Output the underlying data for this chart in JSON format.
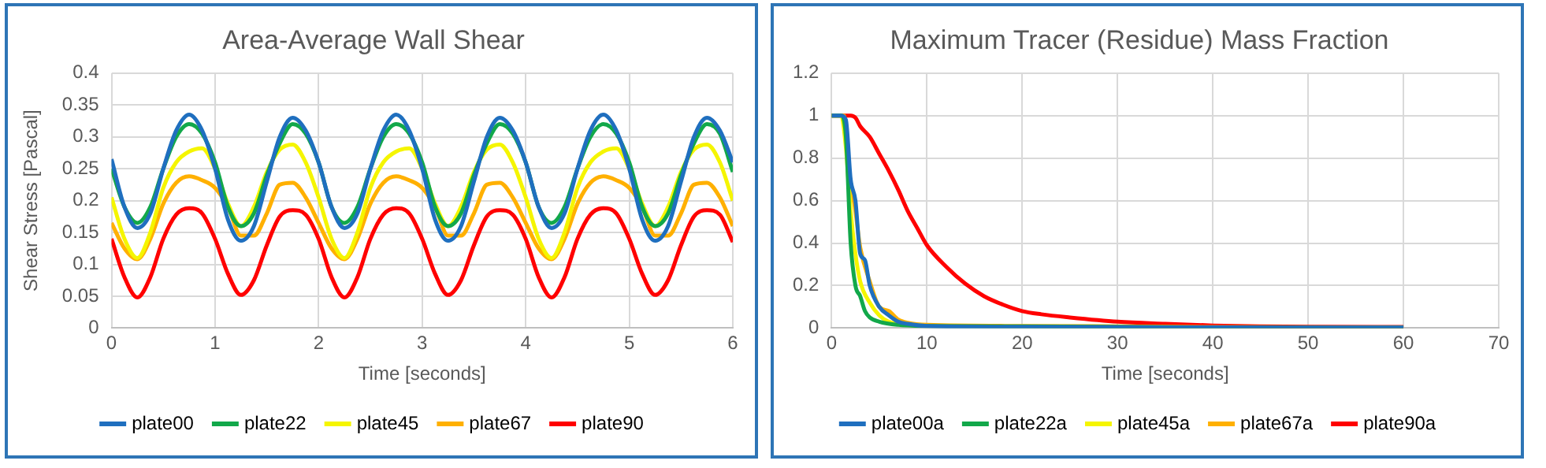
{
  "chart_data": [
    {
      "type": "line",
      "title": "Area-Average Wall Shear",
      "xlabel": "Time [seconds]",
      "ylabel": "Shear Stress [Pascal]",
      "xlim": [
        0,
        6
      ],
      "xticks": [
        0,
        1,
        2,
        3,
        4,
        5,
        6
      ],
      "ylim": [
        0,
        0.4
      ],
      "yticks": [
        0,
        0.05,
        0.1,
        0.15,
        0.2,
        0.25,
        0.3,
        0.35,
        0.4
      ],
      "grid": true,
      "legend": "bottom",
      "marker": "none",
      "x": [
        0,
        0.125,
        0.25,
        0.375,
        0.5,
        0.625,
        0.75,
        0.875,
        1,
        1.125,
        1.25,
        1.375,
        1.5,
        1.625,
        1.75,
        1.875,
        2,
        2.125,
        2.25,
        2.375,
        2.5,
        2.625,
        2.75,
        2.875,
        3,
        3.125,
        3.25,
        3.375,
        3.5,
        3.625,
        3.75,
        3.875,
        4,
        4.125,
        4.25,
        4.375,
        4.5,
        4.625,
        4.75,
        4.875,
        5,
        5.125,
        5.25,
        5.375,
        5.5,
        5.625,
        5.75,
        5.875,
        6
      ],
      "series": [
        {
          "name": "plate00",
          "color": "#1f6fbf",
          "values": [
            0.265,
            0.19,
            0.157,
            0.18,
            0.25,
            0.31,
            0.335,
            0.31,
            0.25,
            0.17,
            0.137,
            0.16,
            0.23,
            0.3,
            0.33,
            0.31,
            0.26,
            0.19,
            0.157,
            0.18,
            0.25,
            0.31,
            0.335,
            0.31,
            0.25,
            0.17,
            0.137,
            0.16,
            0.23,
            0.3,
            0.33,
            0.31,
            0.26,
            0.19,
            0.157,
            0.18,
            0.25,
            0.31,
            0.335,
            0.31,
            0.25,
            0.17,
            0.137,
            0.16,
            0.23,
            0.3,
            0.33,
            0.31,
            0.26
          ]
        },
        {
          "name": "plate22",
          "color": "#12a84a",
          "values": [
            0.25,
            0.19,
            0.165,
            0.19,
            0.25,
            0.3,
            0.32,
            0.305,
            0.26,
            0.19,
            0.16,
            0.18,
            0.24,
            0.29,
            0.32,
            0.305,
            0.26,
            0.19,
            0.165,
            0.19,
            0.25,
            0.3,
            0.32,
            0.305,
            0.26,
            0.19,
            0.16,
            0.18,
            0.24,
            0.29,
            0.32,
            0.305,
            0.26,
            0.19,
            0.165,
            0.19,
            0.25,
            0.3,
            0.32,
            0.305,
            0.26,
            0.19,
            0.16,
            0.18,
            0.24,
            0.29,
            0.32,
            0.305,
            0.245
          ]
        },
        {
          "name": "plate45",
          "color": "#f5f500",
          "values": [
            0.205,
            0.14,
            0.11,
            0.15,
            0.22,
            0.26,
            0.277,
            0.282,
            0.25,
            0.195,
            0.16,
            0.19,
            0.245,
            0.28,
            0.288,
            0.26,
            0.205,
            0.14,
            0.11,
            0.15,
            0.22,
            0.26,
            0.277,
            0.282,
            0.25,
            0.195,
            0.16,
            0.19,
            0.245,
            0.28,
            0.288,
            0.26,
            0.205,
            0.14,
            0.11,
            0.15,
            0.22,
            0.26,
            0.277,
            0.282,
            0.25,
            0.195,
            0.16,
            0.19,
            0.245,
            0.28,
            0.288,
            0.26,
            0.2
          ]
        },
        {
          "name": "plate67",
          "color": "#ffb000",
          "values": [
            0.165,
            0.125,
            0.108,
            0.14,
            0.195,
            0.228,
            0.238,
            0.232,
            0.22,
            0.19,
            0.145,
            0.145,
            0.18,
            0.225,
            0.228,
            0.205,
            0.165,
            0.125,
            0.108,
            0.14,
            0.195,
            0.228,
            0.238,
            0.232,
            0.22,
            0.19,
            0.145,
            0.145,
            0.18,
            0.225,
            0.228,
            0.205,
            0.165,
            0.125,
            0.108,
            0.14,
            0.195,
            0.228,
            0.238,
            0.232,
            0.22,
            0.19,
            0.145,
            0.145,
            0.18,
            0.225,
            0.228,
            0.205,
            0.16
          ]
        },
        {
          "name": "plate90",
          "color": "#ff0000",
          "values": [
            0.14,
            0.08,
            0.048,
            0.08,
            0.14,
            0.178,
            0.188,
            0.18,
            0.14,
            0.085,
            0.052,
            0.075,
            0.13,
            0.175,
            0.185,
            0.178,
            0.14,
            0.08,
            0.048,
            0.08,
            0.14,
            0.178,
            0.188,
            0.18,
            0.14,
            0.085,
            0.052,
            0.075,
            0.13,
            0.175,
            0.185,
            0.178,
            0.14,
            0.08,
            0.048,
            0.08,
            0.14,
            0.178,
            0.188,
            0.18,
            0.14,
            0.085,
            0.052,
            0.075,
            0.13,
            0.175,
            0.185,
            0.178,
            0.135
          ]
        }
      ]
    },
    {
      "type": "line",
      "title": "Maximum Tracer (Residue) Mass Fraction",
      "xlabel": "Time [seconds]",
      "xlim": [
        0,
        70
      ],
      "xticks": [
        0,
        10,
        20,
        30,
        40,
        50,
        60,
        70
      ],
      "ylim": [
        0,
        1.2
      ],
      "yticks": [
        0,
        0.2,
        0.4,
        0.6,
        0.8,
        1,
        1.2
      ],
      "grid": true,
      "legend": "bottom",
      "marker": "none",
      "series": [
        {
          "name": "plate00a",
          "color": "#1f6fbf",
          "x": [
            0,
            1,
            1.5,
            2,
            2.5,
            3,
            3.5,
            4,
            5,
            6,
            7,
            8,
            10,
            20,
            40,
            60
          ],
          "values": [
            1,
            1,
            0.98,
            0.7,
            0.6,
            0.35,
            0.32,
            0.2,
            0.1,
            0.06,
            0.03,
            0.02,
            0.01,
            0.005,
            0.003,
            0.002
          ]
        },
        {
          "name": "plate22a",
          "color": "#12a84a",
          "x": [
            0,
            1,
            1.5,
            2,
            2.5,
            3,
            3.5,
            4,
            5,
            7,
            10,
            20,
            40,
            60
          ],
          "values": [
            1,
            1,
            0.9,
            0.4,
            0.2,
            0.15,
            0.08,
            0.05,
            0.03,
            0.015,
            0.01,
            0.008,
            0.003,
            0.002
          ]
        },
        {
          "name": "plate45a",
          "color": "#f5f500",
          "x": [
            0,
            1,
            1.5,
            2,
            2.5,
            3,
            4,
            5,
            6,
            8,
            10
          ],
          "values": [
            1,
            1,
            0.85,
            0.55,
            0.35,
            0.22,
            0.12,
            0.06,
            0.03,
            0.015,
            0.01
          ]
        },
        {
          "name": "plate67a",
          "color": "#ffb000",
          "x": [
            0,
            1.3,
            1.8,
            2.5,
            3,
            4,
            5,
            6,
            7,
            8,
            10,
            20,
            30,
            40,
            60
          ],
          "values": [
            1,
            1,
            0.75,
            0.55,
            0.38,
            0.22,
            0.1,
            0.08,
            0.04,
            0.025,
            0.015,
            0.01,
            0.008,
            0.005,
            0.003
          ]
        },
        {
          "name": "plate90a",
          "color": "#ff0000",
          "x": [
            0,
            2,
            2.5,
            3,
            4,
            5,
            6,
            7,
            8,
            9,
            10,
            12,
            14,
            16,
            18,
            20,
            22,
            25,
            30,
            35,
            40,
            45,
            50,
            60
          ],
          "values": [
            1,
            1,
            0.99,
            0.95,
            0.9,
            0.82,
            0.74,
            0.65,
            0.55,
            0.47,
            0.39,
            0.29,
            0.21,
            0.15,
            0.11,
            0.08,
            0.065,
            0.05,
            0.03,
            0.02,
            0.012,
            0.008,
            0.006,
            0.005
          ]
        }
      ]
    }
  ]
}
